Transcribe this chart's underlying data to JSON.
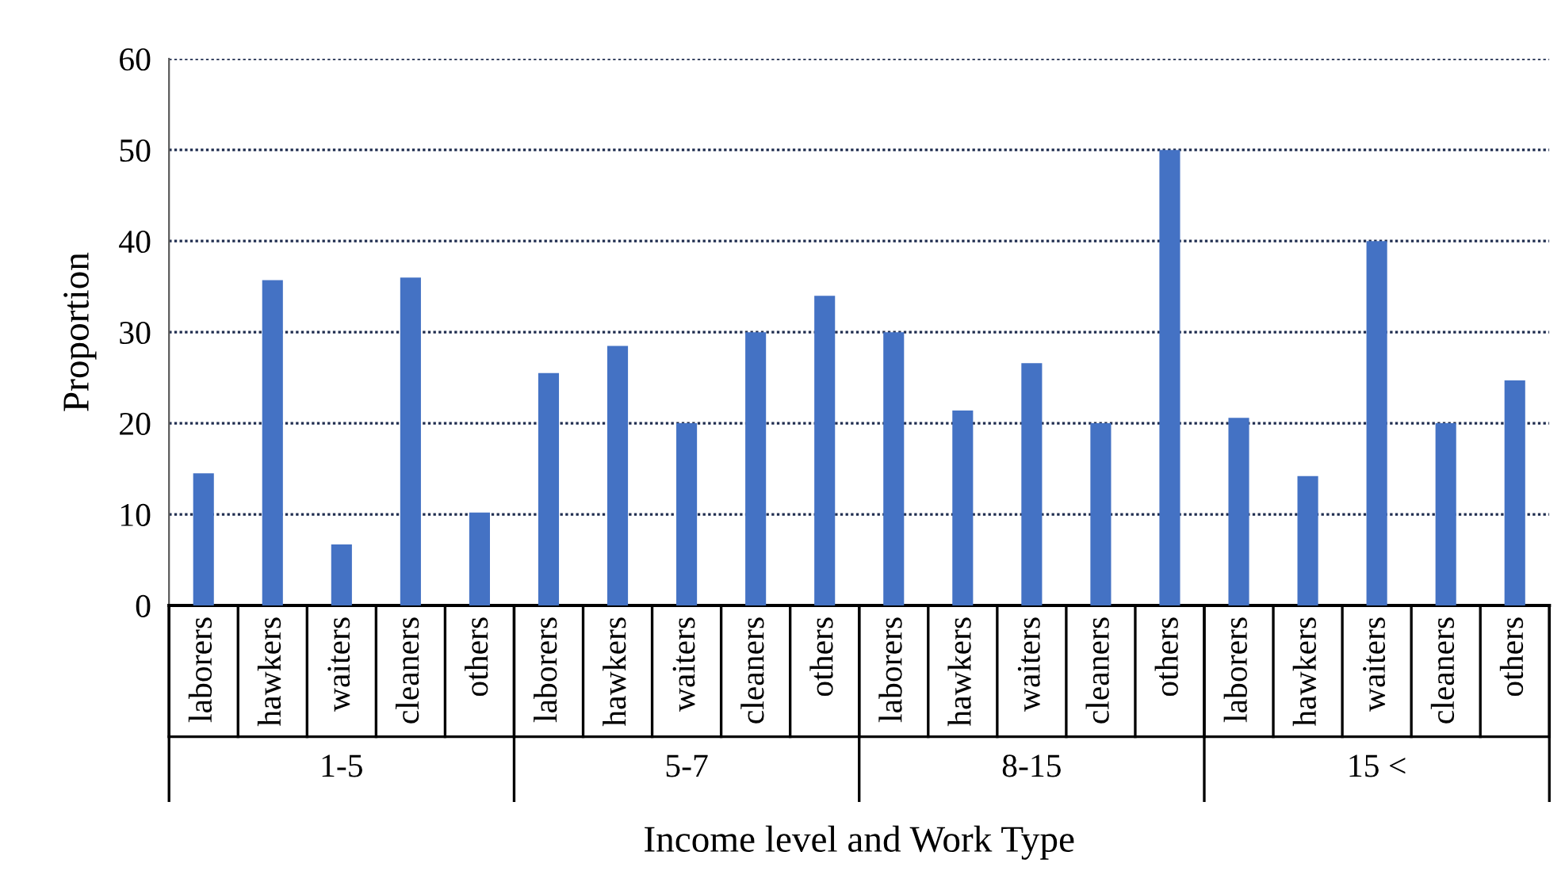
{
  "chart_data": {
    "type": "bar",
    "xlabel": "Income level and Work Type",
    "ylabel": "Proportion",
    "categories": [
      "laborers",
      "hawkers",
      "waiters",
      "cleaners",
      "others",
      "laborers",
      "hawkers",
      "waiters",
      "cleaners",
      "others",
      "laborers",
      "hawkers",
      "waiters",
      "cleaners",
      "others",
      "laborers",
      "hawkers",
      "waiters",
      "cleaners",
      "others"
    ],
    "values": [
      14.5,
      35.7,
      6.7,
      36,
      10.2,
      25.5,
      28.5,
      20,
      30,
      34,
      30,
      21.4,
      26.6,
      20,
      50,
      20.6,
      14.2,
      40,
      20,
      24.7
    ],
    "color": "#4472c4",
    "annotations": [
      "1-5",
      "5-7",
      "8-15",
      "15 <"
    ],
    "ylim": [
      0,
      60
    ],
    "yticks": [
      0,
      10,
      20,
      30,
      40,
      50,
      60
    ],
    "grid": "y",
    "legend": false
  }
}
